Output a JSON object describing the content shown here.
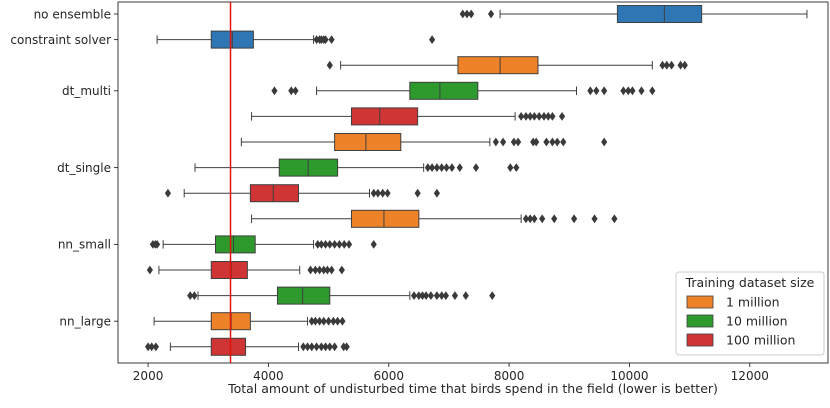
{
  "chart_data": {
    "type": "boxplot-horizontal",
    "title": "",
    "xlabel": "Total amount of undisturbed time that birds spend in the field (lower is better)",
    "ylabel": "",
    "xlim": [
      1500,
      13300
    ],
    "xticks": [
      2000,
      4000,
      6000,
      8000,
      10000,
      12000
    ],
    "xtick_labels": [
      "2000",
      "4000",
      "6000",
      "8000",
      "10000",
      "12000"
    ],
    "reference_line": {
      "x": 3370,
      "color": "#e3120b"
    },
    "colors": {
      "none": "#2f77b4",
      "1 million": "#ee8228",
      "10 million": "#2e9a2e",
      "100 million": "#d03535"
    },
    "legend": {
      "title": "Training dataset size",
      "position": "lower-right",
      "entries": [
        {
          "label": "1 million",
          "key": "1 million"
        },
        {
          "label": "10 million",
          "key": "10 million"
        },
        {
          "label": "100 million",
          "key": "100 million"
        }
      ]
    },
    "categories": [
      {
        "label": "no ensemble",
        "slot": 0
      },
      {
        "label": "constraint solver",
        "slot": 1
      },
      {
        "label": "dt_multi",
        "slot": 3
      },
      {
        "label": "dt_single",
        "slot": 6
      },
      {
        "label": "nn_small",
        "slot": 9
      },
      {
        "label": "nn_large",
        "slot": 12
      }
    ],
    "boxes": [
      {
        "slot": 0,
        "group": "none",
        "whislo": 7850,
        "q1": 9800,
        "med": 10580,
        "q3": 11200,
        "whishi": 12950,
        "fliers": [
          7230,
          7300,
          7370,
          7700
        ]
      },
      {
        "slot": 1,
        "group": "none",
        "whislo": 2150,
        "q1": 3050,
        "med": 3400,
        "q3": 3750,
        "whishi": 4750,
        "fliers": [
          4800,
          4850,
          4880,
          4920,
          4950,
          5050,
          6720
        ]
      },
      {
        "slot": 2,
        "group": "1 million",
        "whislo": 5200,
        "q1": 7150,
        "med": 7850,
        "q3": 8480,
        "whishi": 10380,
        "fliers": [
          5020,
          10550,
          10620,
          10700,
          10850,
          10920
        ]
      },
      {
        "slot": 3,
        "group": "10 million",
        "whislo": 4800,
        "q1": 6350,
        "med": 6850,
        "q3": 7480,
        "whishi": 9120,
        "fliers": [
          4100,
          4380,
          4450,
          9350,
          9450,
          9580,
          9900,
          9980,
          10050,
          10200,
          10380
        ]
      },
      {
        "slot": 4,
        "group": "100 million",
        "whislo": 3720,
        "q1": 5380,
        "med": 5850,
        "q3": 6480,
        "whishi": 8100,
        "fliers": [
          8200,
          8280,
          8350,
          8420,
          8500,
          8580,
          8650,
          8720,
          8880
        ]
      },
      {
        "slot": 5,
        "group": "1 million",
        "whislo": 3550,
        "q1": 5100,
        "med": 5620,
        "q3": 6200,
        "whishi": 7680,
        "fliers": [
          7780,
          7900,
          8080,
          8150,
          8400,
          8450,
          8620,
          8720,
          8800,
          8900,
          9580
        ]
      },
      {
        "slot": 6,
        "group": "10 million",
        "whislo": 2780,
        "q1": 4180,
        "med": 4660,
        "q3": 5150,
        "whishi": 6580,
        "fliers": [
          6650,
          6720,
          6800,
          6880,
          6960,
          7050,
          7180,
          7450,
          8020,
          8120
        ]
      },
      {
        "slot": 7,
        "group": "100 million",
        "whislo": 2600,
        "q1": 3700,
        "med": 4080,
        "q3": 4500,
        "whishi": 5680,
        "fliers": [
          2330,
          5750,
          5820,
          5900,
          5980,
          6480,
          6800
        ]
      },
      {
        "slot": 8,
        "group": "1 million",
        "whislo": 3720,
        "q1": 5380,
        "med": 5920,
        "q3": 6500,
        "whishi": 8200,
        "fliers": [
          8280,
          8350,
          8420,
          8550,
          8750,
          9080,
          9420,
          9750
        ]
      },
      {
        "slot": 9,
        "group": "10 million",
        "whislo": 2250,
        "q1": 3120,
        "med": 3420,
        "q3": 3780,
        "whishi": 4750,
        "fliers": [
          2080,
          2120,
          2150,
          4820,
          4880,
          4950,
          5020,
          5100,
          5180,
          5260,
          5340,
          5750
        ]
      },
      {
        "slot": 10,
        "group": "100 million",
        "whislo": 2180,
        "q1": 3050,
        "med": 3380,
        "q3": 3650,
        "whishi": 4520,
        "fliers": [
          2030,
          4700,
          4780,
          4850,
          4920,
          4980,
          5050,
          5220
        ]
      },
      {
        "slot": 11,
        "group": "10 million",
        "whislo": 2830,
        "q1": 4150,
        "med": 4570,
        "q3": 5020,
        "whishi": 6350,
        "fliers": [
          2700,
          2770,
          6420,
          6500,
          6560,
          6620,
          6700,
          6800,
          6880,
          6950,
          7100,
          7280,
          7720
        ]
      },
      {
        "slot": 12,
        "group": "1 million",
        "whislo": 2100,
        "q1": 3050,
        "med": 3380,
        "q3": 3700,
        "whishi": 4650,
        "fliers": [
          4720,
          4780,
          4850,
          4920,
          5000,
          5080,
          5150,
          5230
        ]
      },
      {
        "slot": 13,
        "group": "100 million",
        "whislo": 2370,
        "q1": 3050,
        "med": 3370,
        "q3": 3620,
        "whishi": 4500,
        "fliers": [
          2000,
          2060,
          2130,
          4580,
          4650,
          4720,
          4800,
          4880,
          4950,
          5020,
          5100,
          5250,
          5300
        ]
      }
    ]
  }
}
